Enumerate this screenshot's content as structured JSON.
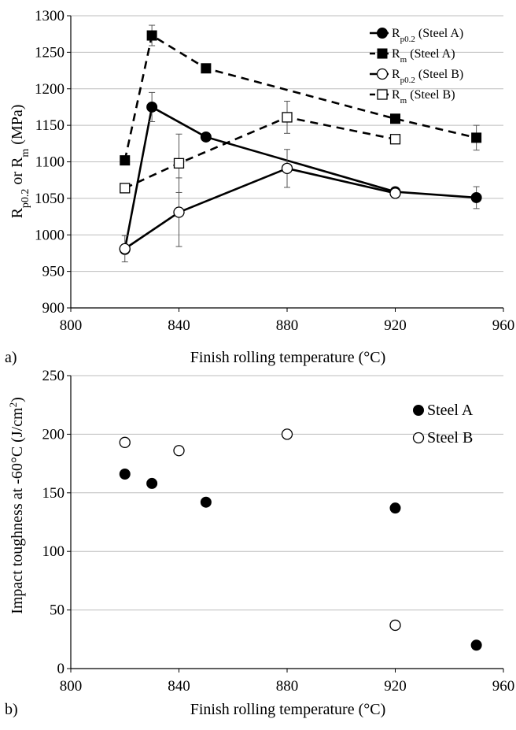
{
  "chart_data": [
    {
      "type": "line",
      "panel_label": "a)",
      "title": "",
      "xlabel": "Finish rolling temperature (°C)",
      "ylabel": {
        "main1": "R",
        "sub1": "p0.2",
        "main2": " or R",
        "sub2": "m",
        "main3": " (MPa)"
      },
      "xlim": [
        800,
        960
      ],
      "ylim": [
        900,
        1300
      ],
      "x_ticks": [
        "800",
        "840",
        "880",
        "920",
        "960"
      ],
      "y_ticks": [
        "900",
        "950",
        "1000",
        "1050",
        "1100",
        "1150",
        "1200",
        "1250",
        "1300"
      ],
      "grid": "horizontal",
      "legend_position": "top-right",
      "series": [
        {
          "name": "Rp0.2 (Steel A)",
          "label_main": "R",
          "label_sub": "p0.2",
          "label_rest": " (Steel A)",
          "marker": "filled-circle",
          "line": "solid",
          "x": [
            820,
            830,
            850,
            920,
            950
          ],
          "y": [
            980,
            1175,
            1134,
            1059,
            1051
          ],
          "err": [
            0,
            20,
            0,
            0,
            15
          ]
        },
        {
          "name": "Rm (Steel A)",
          "label_main": "R",
          "label_sub": "m",
          "label_rest": "   (Steel A)",
          "marker": "filled-square",
          "line": "dashed",
          "x": [
            820,
            830,
            850,
            920,
            950
          ],
          "y": [
            1102,
            1273,
            1228,
            1159,
            1133
          ],
          "err": [
            0,
            14,
            0,
            0,
            17
          ]
        },
        {
          "name": "Rp0.2 (Steel B)",
          "label_main": "R",
          "label_sub": "p0.2",
          "label_rest": " (Steel B)",
          "marker": "open-circle",
          "line": "solid",
          "x": [
            820,
            840,
            880,
            920
          ],
          "y": [
            981,
            1031,
            1091,
            1057
          ],
          "err": [
            18,
            47,
            26,
            0
          ]
        },
        {
          "name": "Rm (Steel B)",
          "label_main": "R",
          "label_sub": "m",
          "label_rest": "   (Steel B)",
          "marker": "open-square",
          "line": "dashed",
          "x": [
            820,
            840,
            880,
            920
          ],
          "y": [
            1064,
            1098,
            1161,
            1131
          ],
          "err": [
            0,
            40,
            22,
            0
          ]
        }
      ]
    },
    {
      "type": "scatter",
      "panel_label": "b)",
      "title": "",
      "xlabel": "Finish rolling temperature (°C)",
      "ylabel": {
        "main": "Impact toughness at -60°C (J/cm",
        "sup": "2",
        "end": ")"
      },
      "xlim": [
        800,
        960
      ],
      "ylim": [
        0,
        250
      ],
      "x_ticks": [
        "800",
        "840",
        "880",
        "920",
        "960"
      ],
      "y_ticks": [
        "0",
        "50",
        "100",
        "150",
        "200",
        "250"
      ],
      "grid": "horizontal",
      "legend_position": "top-right",
      "series": [
        {
          "name": "Steel A",
          "marker": "filled-circle",
          "x": [
            820,
            830,
            850,
            920,
            950
          ],
          "y": [
            166,
            158,
            142,
            137,
            20
          ]
        },
        {
          "name": "Steel B",
          "marker": "open-circle",
          "x": [
            820,
            840,
            880,
            920
          ],
          "y": [
            193,
            186,
            200,
            37
          ]
        }
      ]
    }
  ]
}
